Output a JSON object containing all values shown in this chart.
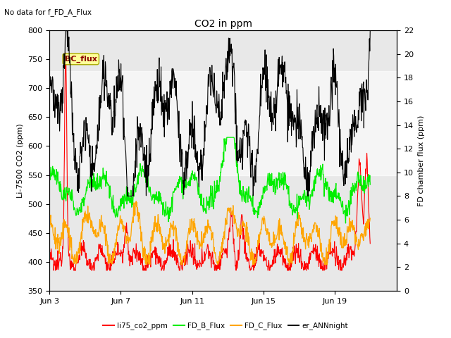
{
  "title": "CO2 in ppm",
  "no_data_text": "No data for f_FD_A_Flux",
  "bc_flux_label": "BC_flux",
  "left_ylabel": "Li-7500 CO2 (ppm)",
  "right_ylabel": "FD chamber flux (ppm)",
  "left_ylim": [
    350,
    800
  ],
  "right_ylim": [
    0,
    22
  ],
  "left_yticks": [
    350,
    400,
    450,
    500,
    550,
    600,
    650,
    700,
    750,
    800
  ],
  "right_yticks": [
    0,
    2,
    4,
    6,
    8,
    10,
    12,
    14,
    16,
    18,
    20,
    22
  ],
  "xticklabels": [
    "Jun 3",
    "Jun 7",
    "Jun 11",
    "Jun 15",
    "Jun 19"
  ],
  "xtick_positions": [
    0,
    4,
    8,
    12,
    16
  ],
  "xlim": [
    0,
    19.5
  ],
  "gray_band": [
    550,
    730
  ],
  "series_colors": {
    "li75": "#ff0000",
    "fd_b": "#00ee00",
    "fd_c": "#ffa500",
    "er_ann": "#000000"
  },
  "legend_labels": [
    "li75_co2_ppm",
    "FD_B_Flux",
    "FD_C_Flux",
    "er_ANNnight"
  ],
  "legend_colors": [
    "#ff0000",
    "#00ee00",
    "#ffa500",
    "#000000"
  ],
  "bg_color": "#ffffff",
  "plot_bg_color": "#e8e8e8",
  "white_band_color": "#d8d8d8",
  "figsize": [
    6.4,
    4.8
  ],
  "dpi": 100
}
